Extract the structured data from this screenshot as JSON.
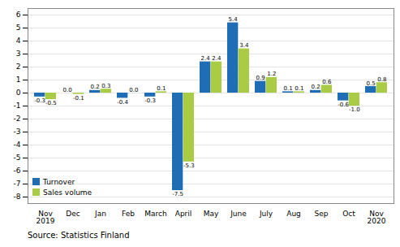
{
  "chart_data": {
    "type": "bar",
    "categories": [
      "Nov\n2019",
      "Dec",
      "Jan",
      "Feb",
      "March",
      "April",
      "May",
      "June",
      "July",
      "Aug",
      "Sep",
      "Oct",
      "Nov\n2020"
    ],
    "series": [
      {
        "name": "Turnover",
        "color": "#1F6DB5",
        "values": [
          -0.3,
          0.0,
          0.2,
          -0.4,
          -0.3,
          -7.5,
          2.4,
          5.4,
          0.9,
          0.1,
          0.2,
          -0.6,
          0.5
        ],
        "value_labels": [
          "-0.3",
          "0.0",
          "0.2",
          "-0.4",
          "-0.3",
          "-7.5",
          "2.4",
          "5.4",
          "0.9",
          "0.1",
          "0.2",
          "-0.6",
          "0.5"
        ]
      },
      {
        "name": "Sales volume",
        "color": "#AACC44",
        "values": [
          -0.5,
          -0.1,
          0.3,
          0.0,
          0.1,
          -5.3,
          2.4,
          3.4,
          1.2,
          0.1,
          0.6,
          -1.0,
          0.8
        ],
        "value_labels": [
          "-0.5",
          "-0.1",
          "0.3",
          "0.0",
          "0.1",
          "-5.3",
          "2.4",
          "3.4",
          "1.2",
          "0.1",
          "0.6",
          "-1.0",
          "0.8"
        ]
      }
    ],
    "ylim": [
      -8.5,
      6.5
    ],
    "yticks": [
      -8,
      -7,
      -6,
      -5,
      -4,
      -3,
      -2,
      -1,
      0,
      1,
      2,
      3,
      4,
      5,
      6
    ],
    "grid": true,
    "legend": "lower left",
    "data_labels": true,
    "caption": "Source: Statistics Finland"
  }
}
